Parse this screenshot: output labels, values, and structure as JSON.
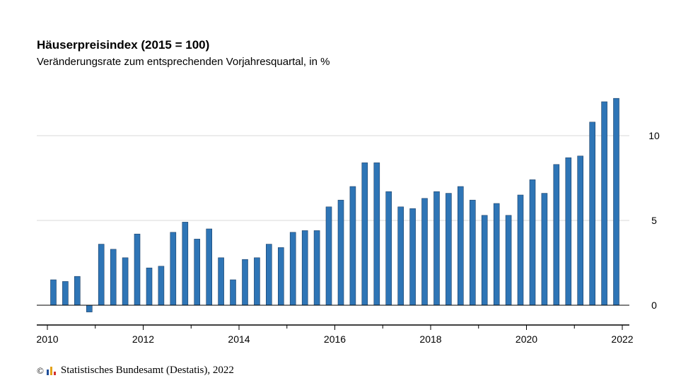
{
  "title": "Häuserpreisindex (2015 = 100)",
  "subtitle": "Veränderungsrate zum entsprechenden Vorjahresquartal, in %",
  "source": {
    "copyright_symbol": "©",
    "text": "Statistisches Bundesamt (Destatis), 2022",
    "logo_colors": [
      "#1f4e9a",
      "#e3a21a",
      "#d32f2f"
    ]
  },
  "colors": {
    "bar": "#2e75b6",
    "bar_stroke": "#1c3f66",
    "grid": "#d9d9d9",
    "axis": "#000000"
  },
  "chart_data": {
    "type": "bar",
    "title": "Häuserpreisindex (2015 = 100)",
    "subtitle": "Veränderungsrate zum entsprechenden Vorjahresquartal, in %",
    "xlabel": "",
    "ylabel": "",
    "ylim": [
      -1.1,
      12.5
    ],
    "yticks": [
      0,
      5,
      10
    ],
    "xlim": [
      2010,
      2022
    ],
    "xticks": [
      "2010",
      "2012",
      "2014",
      "2016",
      "2018",
      "2020",
      "2022"
    ],
    "grid": true,
    "y_axis_position": "right",
    "categories": [
      "2010 Q1",
      "2010 Q2",
      "2010 Q3",
      "2010 Q4",
      "2011 Q1",
      "2011 Q2",
      "2011 Q3",
      "2011 Q4",
      "2012 Q1",
      "2012 Q2",
      "2012 Q3",
      "2012 Q4",
      "2013 Q1",
      "2013 Q2",
      "2013 Q3",
      "2013 Q4",
      "2014 Q1",
      "2014 Q2",
      "2014 Q3",
      "2014 Q4",
      "2015 Q1",
      "2015 Q2",
      "2015 Q3",
      "2015 Q4",
      "2016 Q1",
      "2016 Q2",
      "2016 Q3",
      "2016 Q4",
      "2017 Q1",
      "2017 Q2",
      "2017 Q3",
      "2017 Q4",
      "2018 Q1",
      "2018 Q2",
      "2018 Q3",
      "2018 Q4",
      "2019 Q1",
      "2019 Q2",
      "2019 Q3",
      "2019 Q4",
      "2020 Q1",
      "2020 Q2",
      "2020 Q3",
      "2020 Q4",
      "2021 Q1",
      "2021 Q2",
      "2021 Q3",
      "2021 Q4"
    ],
    "values": [
      1.5,
      1.4,
      1.7,
      -0.4,
      3.6,
      3.3,
      2.8,
      4.2,
      2.2,
      2.3,
      4.3,
      4.9,
      3.9,
      4.5,
      2.8,
      1.5,
      2.7,
      2.8,
      3.6,
      3.4,
      4.3,
      4.4,
      4.4,
      5.8,
      6.2,
      7.0,
      8.4,
      8.4,
      6.7,
      5.8,
      5.7,
      6.3,
      6.7,
      6.6,
      7.0,
      6.2,
      5.3,
      6.0,
      5.3,
      6.5,
      7.4,
      6.6,
      8.3,
      8.7,
      8.8,
      10.8,
      12.0,
      12.2
    ]
  }
}
